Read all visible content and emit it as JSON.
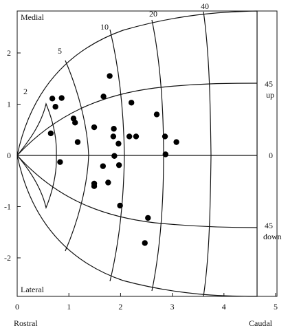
{
  "chart_data": {
    "type": "scatter",
    "title": "",
    "xlabel": "",
    "ylabel": "",
    "xlim": [
      0,
      5
    ],
    "ylim": [
      -2.7,
      2.8
    ],
    "x_ticks": [
      0,
      1,
      2,
      3,
      4,
      5
    ],
    "y_ticks": [
      2,
      1,
      0,
      -1,
      -2
    ],
    "corner_labels": {
      "top_left": "Medial",
      "bottom_left_inside": "Lateral",
      "bottom_left": "Rostral",
      "bottom_right": "Caudal"
    },
    "radial_labels": [
      "2",
      "5",
      "10",
      "20",
      "40"
    ],
    "elevation_labels": {
      "up_value": "45",
      "up_word": "up",
      "zero": "0",
      "down_value": "45",
      "down_word": "down"
    },
    "points": [
      {
        "x": 0.68,
        "y": 1.11
      },
      {
        "x": 0.74,
        "y": 0.95
      },
      {
        "x": 0.86,
        "y": 1.12
      },
      {
        "x": 0.65,
        "y": 0.43
      },
      {
        "x": 0.83,
        "y": -0.13
      },
      {
        "x": 1.09,
        "y": 0.72
      },
      {
        "x": 1.12,
        "y": 0.64
      },
      {
        "x": 1.17,
        "y": 0.26
      },
      {
        "x": 1.49,
        "y": 0.55
      },
      {
        "x": 1.49,
        "y": -0.55
      },
      {
        "x": 1.49,
        "y": -0.6
      },
      {
        "x": 1.67,
        "y": 1.15
      },
      {
        "x": 1.79,
        "y": 1.55
      },
      {
        "x": 1.86,
        "y": 0.37
      },
      {
        "x": 1.87,
        "y": 0.52
      },
      {
        "x": 1.88,
        "y": -0.01
      },
      {
        "x": 1.96,
        "y": 0.23
      },
      {
        "x": 1.97,
        "y": -0.19
      },
      {
        "x": 1.66,
        "y": -0.21
      },
      {
        "x": 1.76,
        "y": -0.53
      },
      {
        "x": 2.17,
        "y": 0.37
      },
      {
        "x": 2.21,
        "y": 1.03
      },
      {
        "x": 2.3,
        "y": 0.37
      },
      {
        "x": 1.99,
        "y": -0.98
      },
      {
        "x": 2.7,
        "y": 0.8
      },
      {
        "x": 2.86,
        "y": 0.37
      },
      {
        "x": 2.87,
        "y": 0.02
      },
      {
        "x": 3.08,
        "y": 0.26
      },
      {
        "x": 2.53,
        "y": -1.22
      },
      {
        "x": 2.47,
        "y": -1.71
      }
    ]
  }
}
